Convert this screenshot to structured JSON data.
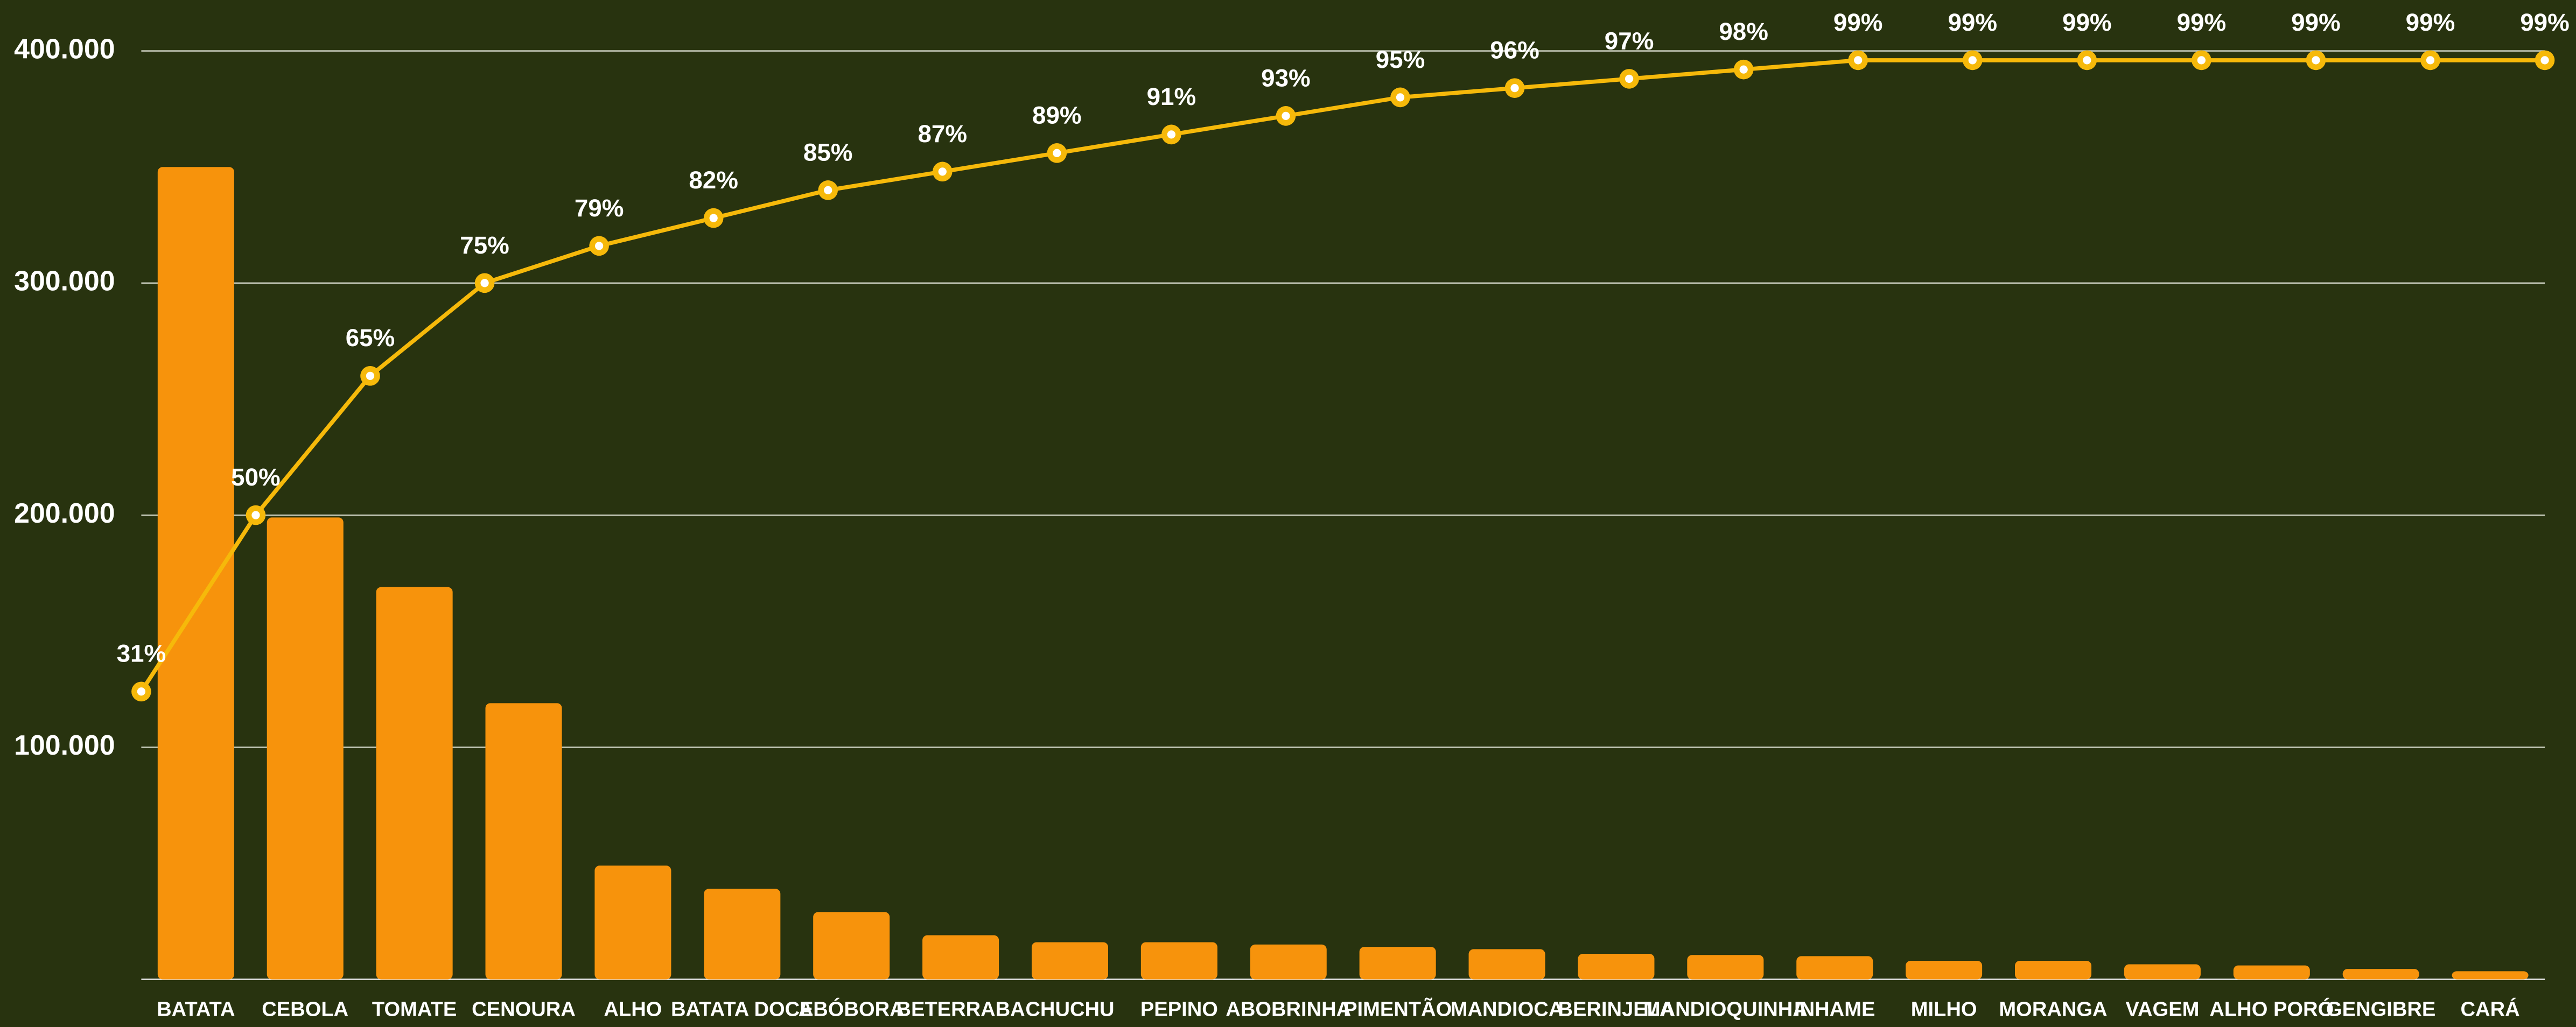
{
  "chart_data": {
    "type": "bar",
    "categories": [
      "BATATA",
      "CEBOLA",
      "TOMATE",
      "CENOURA",
      "ALHO",
      "BATATA DOCE",
      "ABÓBORA",
      "BETERRABA",
      "CHUCHU",
      "PEPINO",
      "ABOBRINHA",
      "PIMENTÃO",
      "MANDIOCA",
      "BERINJELA",
      "MANDIOQUINHA",
      "INHAME",
      "MILHO",
      "MORANGA",
      "VAGEM",
      "ALHO PORÓ",
      "GENGIBRE",
      "CARÁ"
    ],
    "series": [
      {
        "type": "bar",
        "color": "#f7930c",
        "values": [
          350000,
          199000,
          169000,
          119000,
          49000,
          39000,
          29000,
          19000,
          16000,
          16000,
          15000,
          14000,
          13000,
          11000,
          10500,
          10000,
          8000,
          8000,
          6500,
          6000,
          4500,
          3500
        ]
      },
      {
        "type": "line",
        "axis": "y2",
        "color": "#f6b90a",
        "values": [
          31,
          50,
          65,
          75,
          79,
          82,
          85,
          87,
          89,
          91,
          93,
          95,
          96,
          97,
          98,
          99,
          99,
          99,
          99,
          99,
          99,
          99
        ],
        "value_labels": [
          "31%",
          "50%",
          "65%",
          "75%",
          "79%",
          "82%",
          "85%",
          "87%",
          "89%",
          "91%",
          "93%",
          "95%",
          "96%",
          "97%",
          "98%",
          "99%",
          "99%",
          "99%",
          "99%",
          "99%",
          "99%",
          "99%"
        ]
      }
    ],
    "ylim": [
      0,
      400000
    ],
    "yticks": [
      {
        "value": 100000,
        "label": "100.000"
      },
      {
        "value": 200000,
        "label": "200.000"
      },
      {
        "value": 300000,
        "label": "300.000"
      },
      {
        "value": 400000,
        "label": "400.000"
      }
    ],
    "y2lim": [
      0,
      100
    ],
    "grid": true
  }
}
